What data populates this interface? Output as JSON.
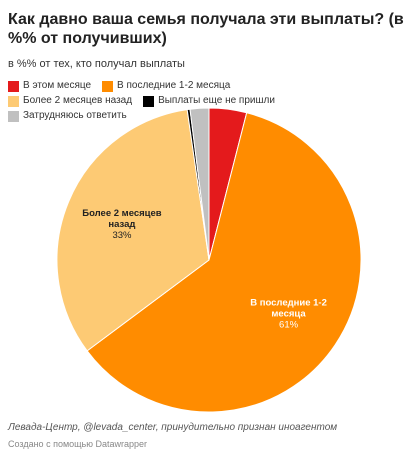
{
  "title": "Как давно ваша семья получала эти выплаты? (в %% от получивших)",
  "subtitle": "в %% от тех, кто получал выплаты",
  "footer": {
    "source": "Левада-Центр, @levada_center, принудительно признан иноагентом",
    "credit": "Создано с помощью Datawrapper"
  },
  "chart_data": {
    "type": "pie",
    "legend_position": "top",
    "series": [
      {
        "name": "В этом месяце",
        "value": 4,
        "color": "#e41a1c"
      },
      {
        "name": "В последние 1-2 месяца",
        "value": 61,
        "color": "#ff8c00"
      },
      {
        "name": "Более 2 месяцев назад",
        "value": 33,
        "color": "#fdca74"
      },
      {
        "name": "Выплаты еще не пришли",
        "value": 0.3,
        "color": "#000000"
      },
      {
        "name": "Затрудняюсь ответить",
        "value": 2,
        "color": "#c0c0c0"
      }
    ],
    "data_labels": [
      {
        "series": 1,
        "lines": [
          "В последние 1-2",
          "месяца"
        ],
        "value_text": "61%"
      },
      {
        "series": 2,
        "lines": [
          "Более 2 месяцев",
          "назад"
        ],
        "value_text": "33%"
      }
    ]
  }
}
